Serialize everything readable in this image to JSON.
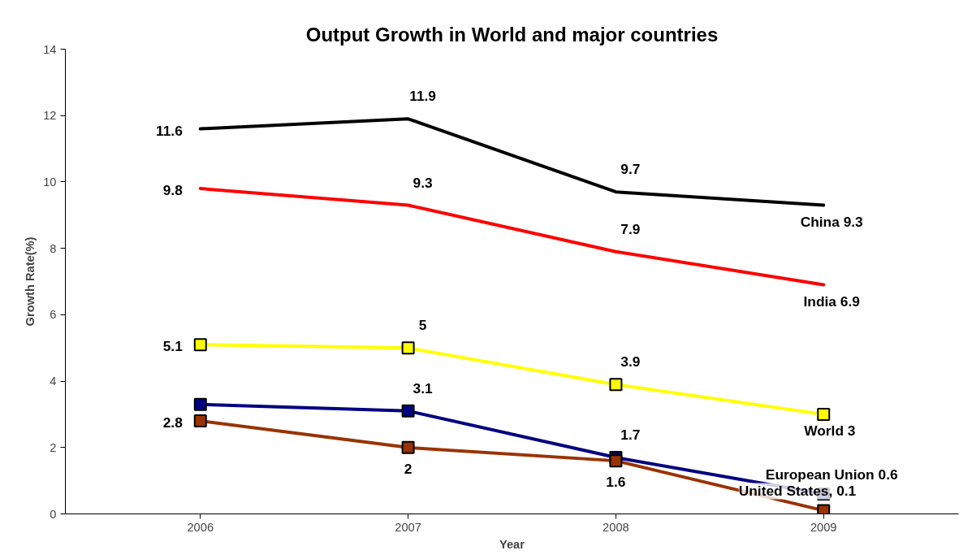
{
  "chart_data": {
    "type": "line",
    "title": "Output Growth in World and major countries",
    "xlabel": "Year",
    "ylabel": "Growth Rate(%)",
    "categories": [
      "2006",
      "2007",
      "2008",
      "2009"
    ],
    "ylim": [
      0,
      14
    ],
    "yticks": [
      0,
      2,
      4,
      6,
      8,
      10,
      12,
      14
    ],
    "grid": false,
    "series": [
      {
        "color": "#000000",
        "values": [
          11.6,
          11.9,
          9.7,
          9.3
        ],
        "value_labels": [
          "11.6",
          "11.9",
          "9.7",
          "China 9.3"
        ],
        "marker": "none"
      },
      {
        "color": "#ff0000",
        "values": [
          9.8,
          9.3,
          7.9,
          6.9
        ],
        "value_labels": [
          "9.8",
          "9.3",
          "7.9",
          "India 6.9"
        ],
        "marker": "none"
      },
      {
        "color": "#ffff00",
        "values": [
          5.1,
          5,
          3.9,
          3
        ],
        "value_labels": [
          "5.1",
          "5",
          "3.9",
          "World  3"
        ],
        "marker": "square"
      },
      {
        "color": "#000080",
        "values": [
          3.3,
          3.1,
          1.7,
          0.6
        ],
        "value_labels": [
          null,
          "3.1",
          "1.7",
          "European Union 0.6"
        ],
        "marker": "square"
      },
      {
        "color": "#993300",
        "values": [
          2.8,
          2,
          1.6,
          0.1
        ],
        "value_labels": [
          "2.8",
          "2",
          "1.6",
          "United States, 0.1"
        ],
        "marker": "square"
      }
    ]
  }
}
